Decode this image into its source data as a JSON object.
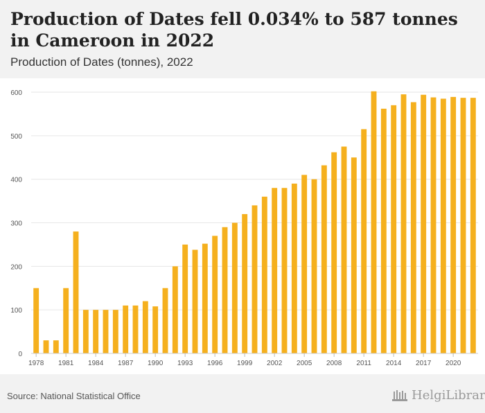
{
  "header": {
    "title": "Production of Dates fell 0.034% to 587 tonnes in Cameroon in 2022",
    "subtitle": "Production of Dates (tonnes), 2022"
  },
  "footer": {
    "source": "Source: National Statistical Office",
    "logo_text": "HelgiLibrary",
    "logo_icon": "library-building-icon"
  },
  "chart_data": {
    "type": "bar",
    "bar_color": "#f5b01e",
    "grid_color": "#e6e6e6",
    "ylim": [
      0,
      600
    ],
    "yticks": [
      0,
      100,
      200,
      300,
      400,
      500,
      600
    ],
    "x_tick_labels": [
      "1978",
      "1981",
      "1984",
      "1987",
      "1990",
      "1993",
      "1996",
      "1999",
      "2002",
      "2005",
      "2008",
      "2011",
      "2014",
      "2017",
      "2020"
    ],
    "categories": [
      "1978",
      "1979",
      "1980",
      "1981",
      "1982",
      "1983",
      "1984",
      "1985",
      "1986",
      "1987",
      "1988",
      "1989",
      "1990",
      "1991",
      "1992",
      "1993",
      "1994",
      "1995",
      "1996",
      "1997",
      "1998",
      "1999",
      "2000",
      "2001",
      "2002",
      "2003",
      "2004",
      "2005",
      "2006",
      "2007",
      "2008",
      "2009",
      "2010",
      "2011",
      "2012",
      "2013",
      "2014",
      "2015",
      "2016",
      "2017",
      "2018",
      "2019",
      "2020",
      "2021",
      "2022"
    ],
    "values": [
      150,
      30,
      30,
      150,
      280,
      100,
      100,
      100,
      100,
      110,
      110,
      120,
      108,
      150,
      200,
      250,
      238,
      252,
      270,
      290,
      300,
      320,
      340,
      360,
      380,
      380,
      390,
      410,
      400,
      432,
      462,
      475,
      450,
      515,
      602,
      562,
      570,
      595,
      577,
      594,
      588,
      585,
      589,
      587,
      587
    ],
    "grid": true,
    "legend": "none"
  }
}
